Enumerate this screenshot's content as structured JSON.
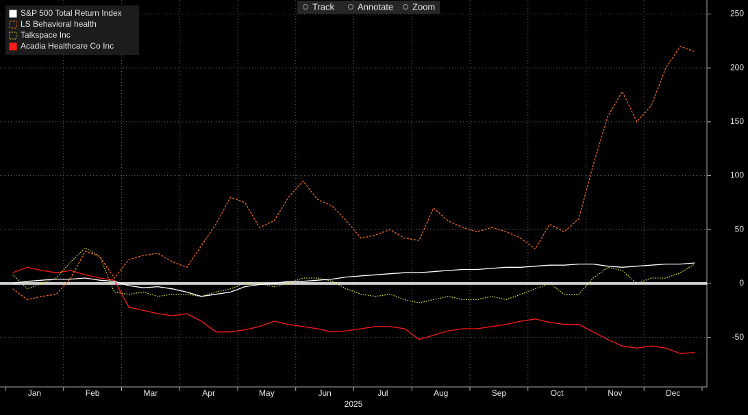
{
  "toolbar": [
    "Track",
    "Annotate",
    "Zoom"
  ],
  "chart_data": {
    "type": "line",
    "x_label": "2025",
    "categories": [
      null,
      null,
      "Jan",
      null,
      null,
      null,
      "Feb",
      null,
      null,
      null,
      "Mar",
      null,
      null,
      null,
      "Apr",
      null,
      null,
      null,
      "May",
      null,
      null,
      null,
      "Jun",
      null,
      null,
      null,
      "Jul",
      null,
      null,
      null,
      "Aug",
      null,
      null,
      null,
      "Sep",
      null,
      null,
      null,
      "Oct",
      null,
      null,
      null,
      "Nov",
      null,
      null,
      null,
      "Dec",
      null
    ],
    "ylim": [
      -96,
      263
    ],
    "yticks": [
      -50,
      0,
      50,
      100,
      150,
      200,
      250
    ],
    "grid": true,
    "legend": "top-left",
    "series": [
      {
        "name": "S&P 500 Total Return Index",
        "color": "#ffffff",
        "dash": "solid",
        "values": [
          0,
          2,
          3,
          4,
          4,
          5,
          3,
          2,
          -2,
          -4,
          -3,
          -5,
          -8,
          -12,
          -10,
          -8,
          -3,
          -1,
          0,
          2,
          2,
          3,
          4,
          6,
          7,
          8,
          9,
          10,
          10,
          11,
          12,
          13,
          13,
          14,
          15,
          15,
          16,
          17,
          17,
          18,
          18,
          16,
          15,
          16,
          17,
          18,
          18,
          19
        ]
      },
      {
        "name": "LS Behavioral health",
        "color": "#f26b1d",
        "dash": "dashed",
        "values": [
          -5,
          -15,
          -12,
          -10,
          5,
          30,
          25,
          5,
          22,
          26,
          28,
          20,
          15,
          35,
          55,
          80,
          75,
          52,
          58,
          80,
          95,
          78,
          72,
          58,
          42,
          45,
          50,
          42,
          40,
          70,
          58,
          52,
          48,
          52,
          48,
          42,
          32,
          55,
          48,
          60,
          110,
          155,
          178,
          150,
          165,
          200,
          220,
          215
        ]
      },
      {
        "name": "Talkspace Inc",
        "color": "#e8e83a",
        "dash": "dotted",
        "values": [
          8,
          -5,
          0,
          5,
          20,
          33,
          25,
          -8,
          -10,
          -8,
          -12,
          -10,
          -10,
          -12,
          -8,
          -5,
          0,
          0,
          -3,
          0,
          5,
          5,
          2,
          -5,
          -10,
          -12,
          -10,
          -15,
          -18,
          -15,
          -12,
          -15,
          -15,
          -12,
          -15,
          -10,
          -5,
          0,
          -10,
          -10,
          5,
          15,
          12,
          0,
          5,
          5,
          10,
          18
        ]
      },
      {
        "name": "Acadia Healthcare Co Inc",
        "color": "#ff1a1a",
        "dash": "solid",
        "values": [
          10,
          15,
          12,
          10,
          12,
          8,
          5,
          3,
          -22,
          -25,
          -28,
          -30,
          -28,
          -35,
          -45,
          -45,
          -43,
          -40,
          -35,
          -38,
          -40,
          -42,
          -45,
          -44,
          -42,
          -40,
          -40,
          -42,
          -52,
          -48,
          -44,
          -42,
          -42,
          -40,
          -38,
          -35,
          -33,
          -36,
          -38,
          -38,
          -45,
          -52,
          -58,
          -60,
          -58,
          -60,
          -65,
          -64
        ]
      }
    ]
  }
}
